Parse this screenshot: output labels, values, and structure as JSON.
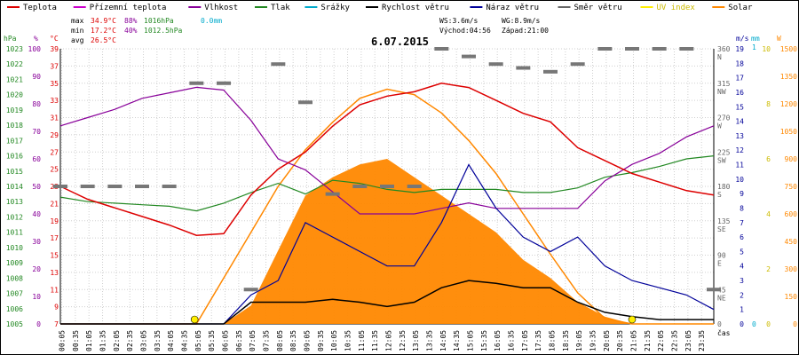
{
  "chart_data": {
    "type": "line",
    "title": "6.07.2015",
    "xlabel": "čas",
    "legend": [
      {
        "name": "Teplota",
        "color": "#dd0000"
      },
      {
        "name": "Přízemní teplota",
        "color": "#cc00cc"
      },
      {
        "name": "Vlhkost",
        "color": "#880099"
      },
      {
        "name": "Tlak",
        "color": "#228822"
      },
      {
        "name": "Srážky",
        "color": "#00aacc"
      },
      {
        "name": "Rychlost větru",
        "color": "#000000"
      },
      {
        "name": "Náraz větru",
        "color": "#000099"
      },
      {
        "name": "Směr větru",
        "color": "#666666"
      },
      {
        "name": "UV index",
        "color": "#ffee00"
      },
      {
        "name": "Solar",
        "color": "#ff8800"
      }
    ],
    "stats": {
      "max_label": "max",
      "max_temp": "34.9°C",
      "max_hum": "88%",
      "max_press": "1016hPa",
      "max_rain": "0.0mm",
      "min_label": "min",
      "min_temp": "17.2°C",
      "min_hum": "40%",
      "min_press": "1012.5hPa",
      "avg_label": "avg",
      "avg_temp": "26.5°C",
      "ws": "WS:3.6m/s",
      "wg": "WG:8.9m/s",
      "sunrise": "Východ:04:56",
      "sunset": "Západ:21:00"
    },
    "axes": {
      "hpa": {
        "unit": "hPa",
        "ticks": [
          "1023",
          "1022",
          "1021",
          "1020",
          "1019",
          "1018",
          "1017",
          "1016",
          "1015",
          "1014",
          "1013",
          "1012",
          "1011",
          "1010",
          "1009",
          "1008",
          "1007",
          "1006",
          "1005"
        ],
        "range": [
          1005,
          1023
        ]
      },
      "percent": {
        "unit": "%",
        "ticks": [
          "100",
          "90",
          "80",
          "70",
          "60",
          "50",
          "40",
          "30",
          "20",
          "10",
          "0"
        ],
        "range": [
          0,
          100
        ]
      },
      "celsius": {
        "unit": "°C",
        "ticks": [
          "39",
          "37",
          "35",
          "33",
          "31",
          "29",
          "27",
          "25",
          "23",
          "21",
          "19",
          "17",
          "15",
          "13",
          "11",
          "9",
          "7"
        ],
        "range": [
          7,
          39
        ]
      },
      "direction": {
        "ticks": [
          "360 N",
          "315 NW",
          "270 W",
          "225 SW",
          "180 S",
          "135 SE",
          "90 E",
          "45 NE",
          "0"
        ]
      },
      "ms": {
        "unit": "m/s",
        "ticks": [
          "19",
          "18",
          "17",
          "16",
          "15",
          "14",
          "13",
          "12",
          "11",
          "10",
          "9",
          "8",
          "7",
          "6",
          "5",
          "4",
          "3",
          "2",
          "1",
          "0"
        ],
        "range": [
          0,
          19
        ]
      },
      "mm": {
        "unit": "mm",
        "ticks": [
          "1",
          "0"
        ]
      },
      "uv": {
        "unit": "UV",
        "ticks": [
          "10",
          "8",
          "6",
          "4",
          "2",
          "0"
        ]
      },
      "w": {
        "unit": "W",
        "ticks": [
          "1500",
          "1350",
          "1200",
          "1050",
          "900",
          "750",
          "600",
          "450",
          "300",
          "150",
          "0"
        ],
        "range": [
          0,
          1500
        ]
      }
    },
    "x_ticks": [
      "00:05",
      "00:35",
      "01:05",
      "01:35",
      "02:05",
      "02:35",
      "03:05",
      "03:35",
      "04:05",
      "04:35",
      "05:05",
      "05:35",
      "06:05",
      "06:35",
      "07:05",
      "07:35",
      "08:05",
      "08:35",
      "09:05",
      "09:35",
      "10:05",
      "10:35",
      "11:05",
      "11:35",
      "12:05",
      "12:35",
      "13:05",
      "13:35",
      "14:05",
      "14:35",
      "15:05",
      "15:35",
      "16:05",
      "16:35",
      "17:05",
      "17:35",
      "18:05",
      "18:35",
      "19:05",
      "19:35",
      "20:05",
      "20:35",
      "21:05",
      "21:35",
      "22:05",
      "22:35",
      "23:05",
      "23:35"
    ],
    "series": {
      "hours": [
        0,
        1,
        2,
        3,
        4,
        5,
        6,
        7,
        8,
        9,
        10,
        11,
        12,
        13,
        14,
        15,
        16,
        17,
        18,
        19,
        20,
        21,
        22,
        23,
        24
      ],
      "temperature_c": [
        23,
        21.5,
        20.5,
        19.5,
        18.5,
        17.3,
        17.5,
        22,
        25,
        27,
        30,
        32.5,
        33.5,
        34,
        35,
        34.5,
        33,
        31.5,
        30.5,
        27.5,
        26,
        24.5,
        23.5,
        22.5,
        22
      ],
      "humidity_pct": [
        72,
        75,
        78,
        82,
        84,
        86,
        85,
        74,
        60,
        56,
        48,
        40,
        40,
        40,
        42,
        44,
        42,
        42,
        42,
        42,
        52,
        58,
        62,
        68,
        72
      ],
      "pressure_hpa": [
        1013.3,
        1013.0,
        1012.9,
        1012.8,
        1012.7,
        1012.4,
        1012.9,
        1013.6,
        1014.2,
        1013.5,
        1014.4,
        1014.2,
        1013.8,
        1013.6,
        1013.8,
        1013.8,
        1013.8,
        1013.6,
        1013.6,
        1013.9,
        1014.6,
        1014.9,
        1015.3,
        1015.8,
        1016.0
      ],
      "wind_speed_ms": [
        0,
        0,
        0,
        0,
        0,
        0,
        0,
        1.5,
        1.5,
        1.5,
        1.7,
        1.5,
        1.2,
        1.5,
        2.5,
        3,
        2.8,
        2.5,
        2.5,
        1.5,
        0.8,
        0.5,
        0.3,
        0.3,
        0.3
      ],
      "wind_gust_ms": [
        0,
        0,
        0,
        0,
        0,
        0,
        0,
        2,
        3,
        7,
        6,
        5,
        4,
        4,
        7,
        11,
        8,
        6,
        5,
        6,
        4,
        3,
        2.5,
        2,
        1
      ],
      "wind_direction_deg": [
        180,
        180,
        180,
        180,
        180,
        315,
        315,
        45,
        340,
        290,
        170,
        180,
        180,
        180,
        360,
        350,
        340,
        335,
        330,
        340,
        360,
        360,
        360,
        360,
        45
      ],
      "solar_wm2": [
        0,
        0,
        0,
        0,
        0,
        0,
        0,
        100,
        400,
        700,
        800,
        870,
        900,
        800,
        700,
        600,
        500,
        350,
        250,
        120,
        40,
        0,
        0,
        0,
        0
      ],
      "solar_theoretical_wm2": [
        0,
        0,
        0,
        0,
        0,
        0,
        250,
        500,
        750,
        950,
        1100,
        1230,
        1280,
        1250,
        1150,
        1000,
        820,
        600,
        380,
        170,
        30,
        0,
        0,
        0,
        0
      ]
    }
  }
}
